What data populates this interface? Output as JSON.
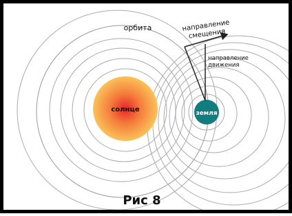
{
  "orbit_label": "орбита",
  "displacement_direction": [
    "направление",
    "смещения"
  ],
  "motion_direction": [
    "направление",
    "движения"
  ],
  "sun_label": "солнце",
  "earth_label": "земля",
  "caption": "Рис 8"
}
